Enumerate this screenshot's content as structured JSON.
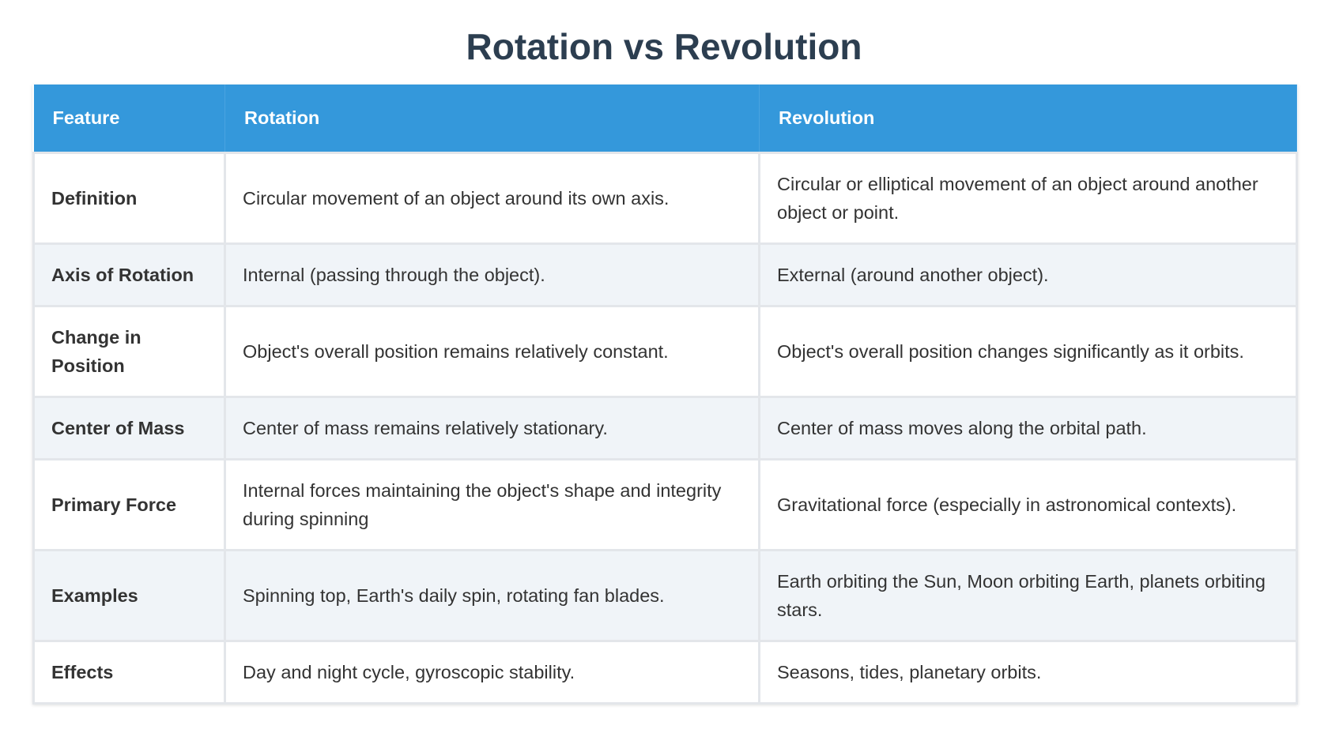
{
  "header": {
    "title": "Rotation vs Revolution"
  },
  "table": {
    "columns": [
      "Feature",
      "Rotation",
      "Revolution"
    ],
    "rows": [
      [
        "Definition",
        "Circular movement of an object around its own axis.",
        "Circular or elliptical movement of an object around another object or point."
      ],
      [
        "Axis of Rotation",
        "Internal (passing through the object).",
        "External (around another object)."
      ],
      [
        "Change in Position",
        "Object's overall position remains relatively constant.",
        "Object's overall position changes significantly as it orbits."
      ],
      [
        "Center of Mass",
        "Center of mass remains relatively stationary.",
        "Center of mass moves along the orbital path."
      ],
      [
        "Primary Force",
        "Internal forces maintaining the object's shape and integrity during spinning",
        "Gravitational force (especially in astronomical contexts)."
      ],
      [
        "Examples",
        "Spinning top, Earth's daily spin, rotating fan blades.",
        "Earth orbiting the Sun, Moon orbiting Earth, planets orbiting stars."
      ],
      [
        "Effects",
        "Day and night cycle, gyroscopic stability.",
        "Seasons, tides, planetary orbits."
      ]
    ]
  }
}
